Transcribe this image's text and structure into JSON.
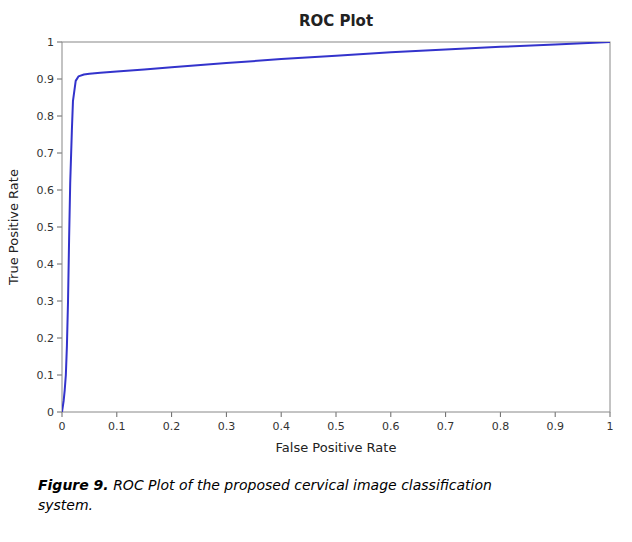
{
  "chart_data": {
    "type": "line",
    "title": "ROC Plot",
    "x_label": "False Positive Rate",
    "y_label": "True Positive Rate",
    "color": "#3333CC",
    "grid": false,
    "xlim": [
      0,
      1
    ],
    "ylim": [
      0,
      1
    ],
    "xticks": [
      0,
      0.1,
      0.2,
      0.3,
      0.4,
      0.5,
      0.6,
      0.7,
      0.8,
      0.9,
      1
    ],
    "yticks": [
      0,
      0.1,
      0.2,
      0.3,
      0.4,
      0.5,
      0.6,
      0.7,
      0.8,
      0.9,
      1
    ],
    "x": [
      0,
      0.003,
      0.005,
      0.007,
      0.009,
      0.011,
      0.013,
      0.015,
      0.018,
      0.02,
      0.025,
      0.03,
      0.04,
      0.05,
      0.07,
      0.1,
      0.15,
      0.2,
      0.3,
      0.4,
      0.5,
      0.6,
      0.7,
      0.8,
      0.9,
      1.0
    ],
    "values": [
      0,
      0.03,
      0.06,
      0.1,
      0.18,
      0.3,
      0.47,
      0.62,
      0.76,
      0.84,
      0.895,
      0.907,
      0.912,
      0.914,
      0.917,
      0.92,
      0.926,
      0.932,
      0.943,
      0.954,
      0.963,
      0.972,
      0.98,
      0.987,
      0.993,
      1.0
    ],
    "annotations": [
      "Figure 9.",
      " ROC Plot of the proposed cervical image classification\nsystem."
    ]
  }
}
